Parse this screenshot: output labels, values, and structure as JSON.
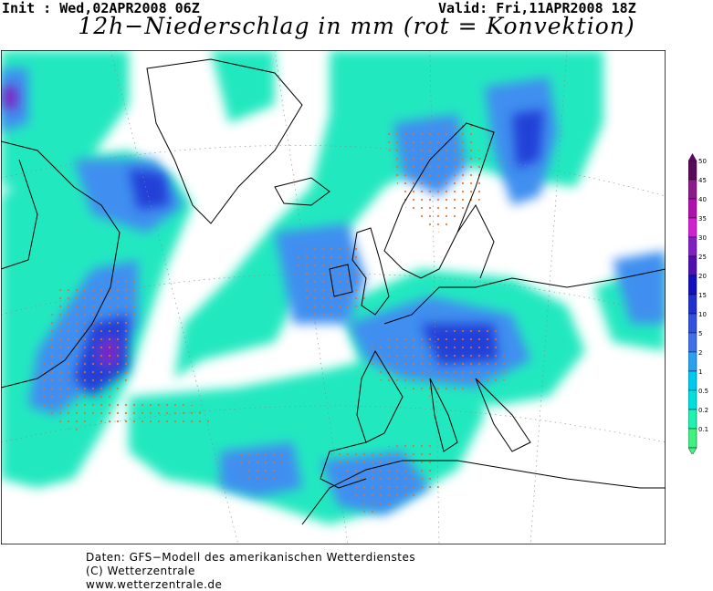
{
  "header": {
    "init": "Init : Wed,02APR2008 06Z",
    "valid": "Valid: Fri,11APR2008 18Z",
    "title": "12h−Niederschlag in mm (rot = Konvektion)"
  },
  "legend": {
    "levels": [
      "50",
      "45",
      "40",
      "35",
      "30",
      "25",
      "20",
      "15",
      "10",
      "5",
      "2",
      "1",
      "0.5",
      "0.2",
      "0.1"
    ],
    "colors": [
      "#5a0a5a",
      "#8a1a8a",
      "#b010b0",
      "#d020d0",
      "#8020c0",
      "#5010b0",
      "#1010c0",
      "#2030d0",
      "#3050e0",
      "#4070e8",
      "#2aa0f0",
      "#00c8f0",
      "#00e0e0",
      "#20f0b0",
      "#40f080"
    ]
  },
  "credits": {
    "line1": "Daten: GFS−Modell des amerikanischen Wetterdienstes",
    "line2": "(C) Wetterzentrale",
    "line3": "www.wetterzentrale.de"
  }
}
